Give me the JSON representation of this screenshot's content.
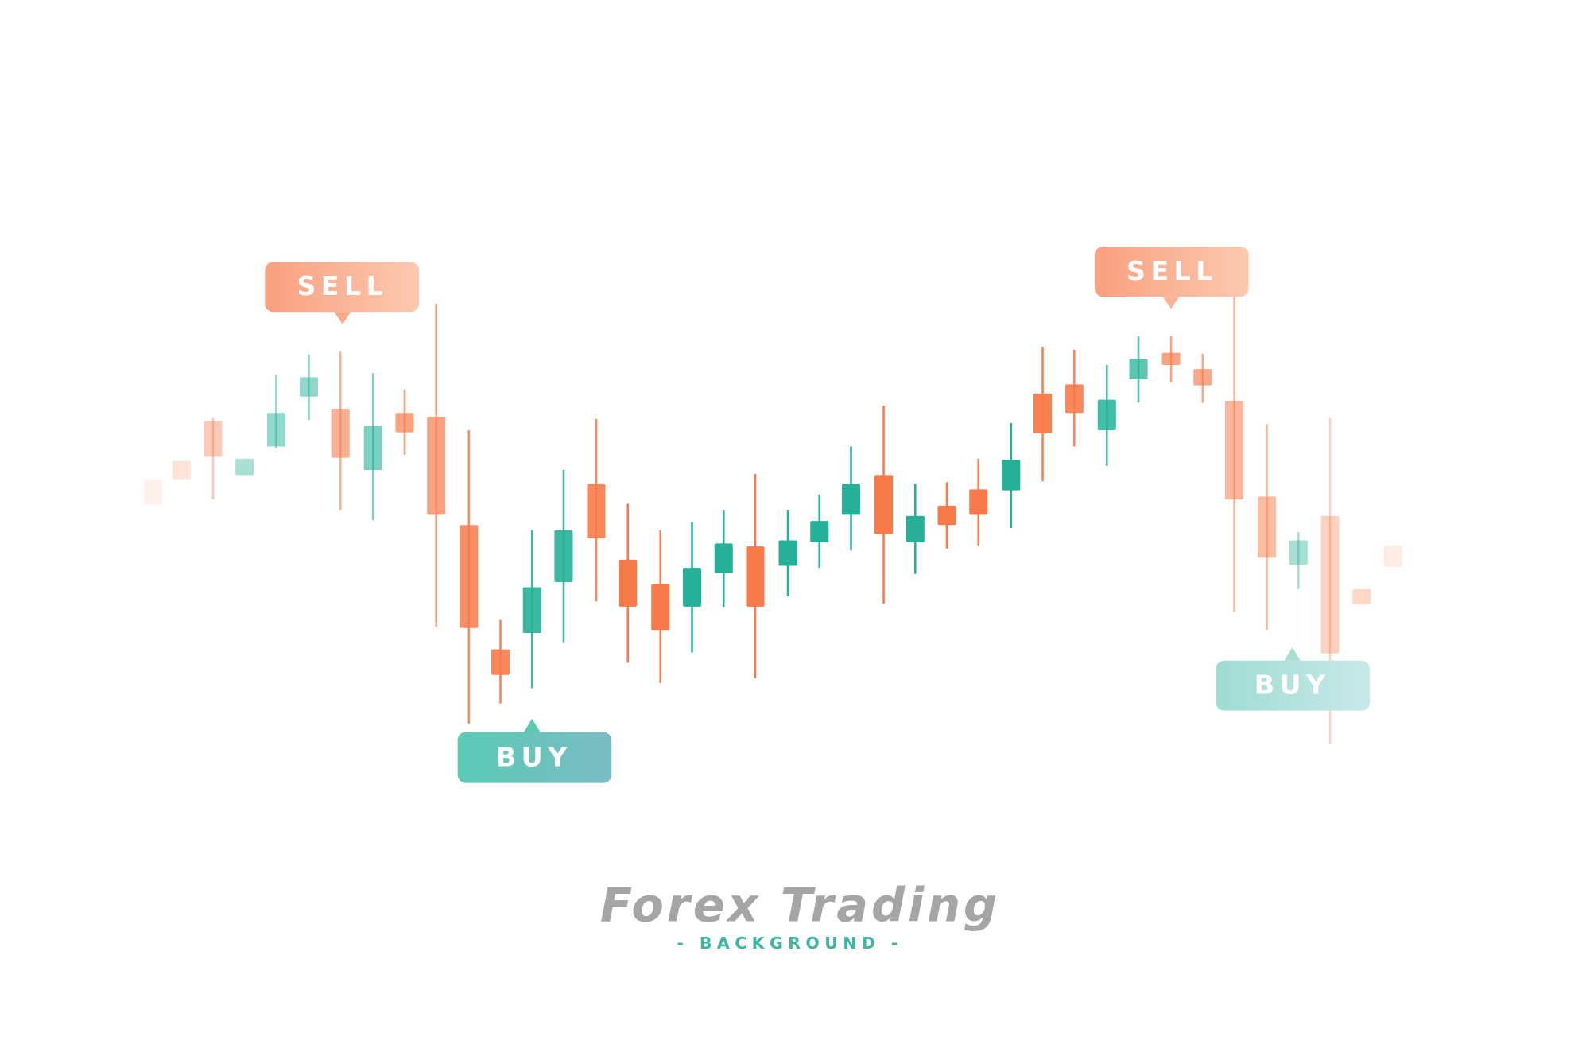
{
  "labels": [
    "SELL",
    "BUY",
    "SELL",
    "BUY"
  ],
  "title": "Forex Trading",
  "subtitle": "- BACKGROUND -"
}
